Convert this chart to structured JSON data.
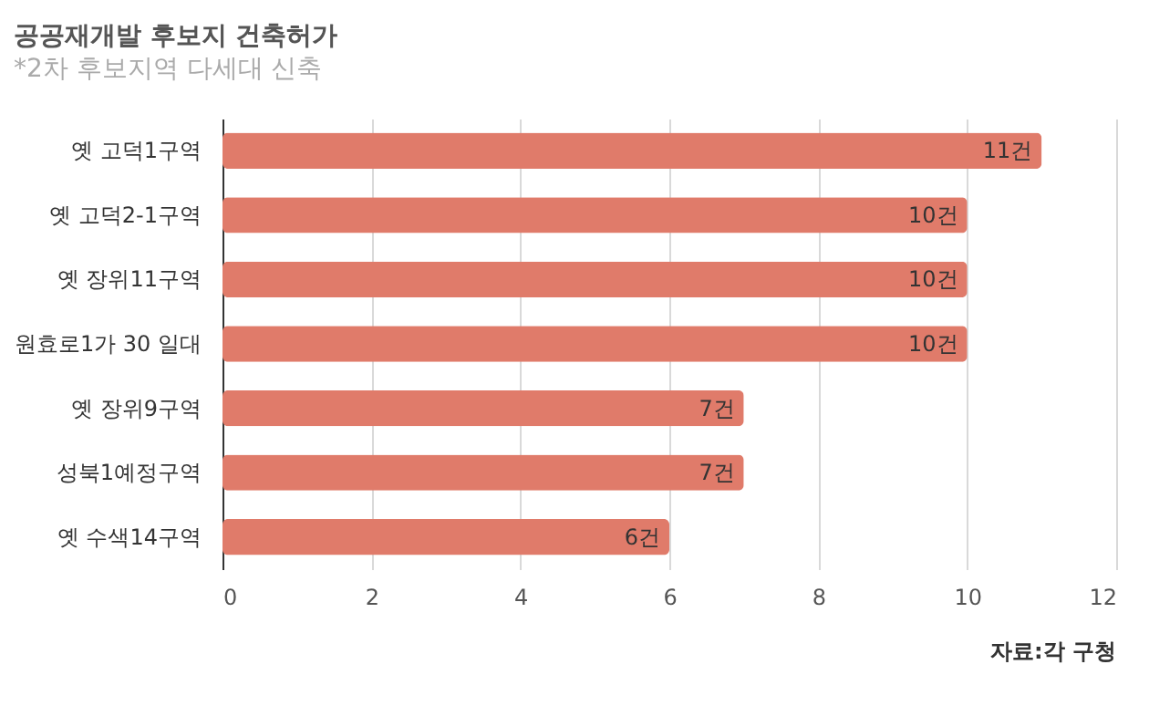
{
  "chart_data": {
    "type": "bar",
    "orientation": "horizontal",
    "title": "공공재개발 후보지 건축허가",
    "subtitle": "*2차 후보지역 다세대 신축",
    "categories": [
      "옛 고덕1구역",
      "옛 고덕2-1구역",
      "옛 장위11구역",
      "원효로1가 30 일대",
      "옛 장위9구역",
      "성북1예정구역",
      "옛 수색14구역"
    ],
    "values": [
      11,
      10,
      10,
      10,
      7,
      7,
      6
    ],
    "value_labels": [
      "11건",
      "10건",
      "10건",
      "10건",
      "7건",
      "7건",
      "6건"
    ],
    "color": "#e07b6a",
    "xlim": [
      0,
      12
    ],
    "xticks": [
      0,
      2,
      4,
      6,
      8,
      10,
      12
    ],
    "grid": "x",
    "annotations": [
      "자료:각 구청"
    ]
  }
}
